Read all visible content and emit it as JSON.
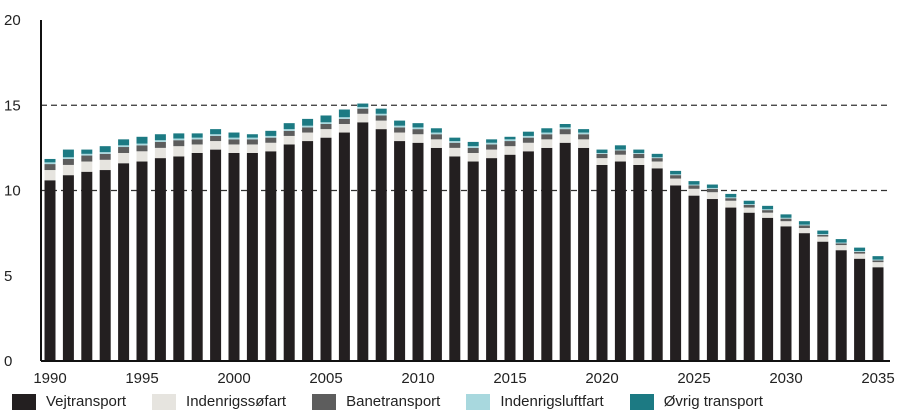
{
  "chart_data": {
    "type": "bar",
    "stacked": true,
    "title": "",
    "xlabel": "",
    "ylabel": "",
    "ylim": [
      0,
      20
    ],
    "yticks": [
      "0",
      "5",
      "10",
      "15",
      "20"
    ],
    "xticks": [
      "1990",
      "1995",
      "2000",
      "2005",
      "2010",
      "2015",
      "2020",
      "2025",
      "2030",
      "2035"
    ],
    "grid": "dashed horizontal lines at 10 and 15",
    "legend_position": "bottom",
    "categories": [
      1990,
      1991,
      1992,
      1993,
      1994,
      1995,
      1996,
      1997,
      1998,
      1999,
      2000,
      2001,
      2002,
      2003,
      2004,
      2005,
      2006,
      2007,
      2008,
      2009,
      2010,
      2011,
      2012,
      2013,
      2014,
      2015,
      2016,
      2017,
      2018,
      2019,
      2020,
      2021,
      2022,
      2023,
      2024,
      2025,
      2026,
      2027,
      2028,
      2029,
      2030,
      2031,
      2032,
      2033,
      2034,
      2035
    ],
    "series": [
      {
        "name": "Vejtransport",
        "color": "#231f20",
        "values": [
          10.6,
          10.9,
          11.1,
          11.2,
          11.6,
          11.7,
          11.9,
          12.0,
          12.2,
          12.4,
          12.2,
          12.2,
          12.3,
          12.7,
          12.9,
          13.1,
          13.4,
          14.0,
          13.6,
          12.9,
          12.8,
          12.5,
          12.0,
          11.7,
          11.9,
          12.1,
          12.3,
          12.5,
          12.8,
          12.5,
          11.5,
          11.7,
          11.5,
          11.3,
          10.3,
          9.7,
          9.5,
          9.0,
          8.7,
          8.4,
          7.9,
          7.5,
          7.0,
          6.5,
          6.0,
          5.5
        ]
      },
      {
        "name": "Indenrigssøfart",
        "color": "#e6e4df",
        "values": [
          0.6,
          0.6,
          0.6,
          0.6,
          0.6,
          0.6,
          0.6,
          0.6,
          0.5,
          0.5,
          0.5,
          0.5,
          0.5,
          0.5,
          0.5,
          0.5,
          0.5,
          0.5,
          0.5,
          0.5,
          0.5,
          0.5,
          0.5,
          0.5,
          0.5,
          0.5,
          0.5,
          0.5,
          0.5,
          0.5,
          0.4,
          0.4,
          0.4,
          0.4,
          0.4,
          0.4,
          0.4,
          0.4,
          0.3,
          0.3,
          0.3,
          0.3,
          0.3,
          0.3,
          0.3,
          0.3
        ]
      },
      {
        "name": "Banetransport",
        "color": "#5d5d5d",
        "values": [
          0.35,
          0.35,
          0.35,
          0.35,
          0.35,
          0.35,
          0.35,
          0.35,
          0.3,
          0.3,
          0.3,
          0.3,
          0.3,
          0.3,
          0.3,
          0.3,
          0.3,
          0.3,
          0.3,
          0.3,
          0.3,
          0.3,
          0.3,
          0.3,
          0.3,
          0.3,
          0.3,
          0.3,
          0.3,
          0.3,
          0.25,
          0.25,
          0.25,
          0.2,
          0.2,
          0.2,
          0.2,
          0.15,
          0.15,
          0.15,
          0.15,
          0.15,
          0.1,
          0.1,
          0.1,
          0.1
        ]
      },
      {
        "name": "Indenrigsluftfart",
        "color": "#a8d8de",
        "values": [
          0.1,
          0.1,
          0.1,
          0.1,
          0.1,
          0.1,
          0.1,
          0.1,
          0.1,
          0.1,
          0.1,
          0.1,
          0.1,
          0.1,
          0.1,
          0.1,
          0.1,
          0.1,
          0.1,
          0.1,
          0.1,
          0.1,
          0.1,
          0.1,
          0.1,
          0.1,
          0.1,
          0.1,
          0.1,
          0.1,
          0.05,
          0.05,
          0.05,
          0.05,
          0.05,
          0.05,
          0.05,
          0.05,
          0.05,
          0.05,
          0.05,
          0.05,
          0.05,
          0.05,
          0.05,
          0.05
        ]
      },
      {
        "name": "Øvrig transport",
        "color": "#1c7a83",
        "values": [
          0.2,
          0.45,
          0.25,
          0.35,
          0.35,
          0.4,
          0.35,
          0.3,
          0.25,
          0.3,
          0.3,
          0.2,
          0.3,
          0.35,
          0.4,
          0.4,
          0.45,
          0.2,
          0.3,
          0.3,
          0.25,
          0.25,
          0.2,
          0.25,
          0.2,
          0.15,
          0.25,
          0.25,
          0.2,
          0.2,
          0.2,
          0.25,
          0.2,
          0.2,
          0.2,
          0.2,
          0.2,
          0.2,
          0.2,
          0.2,
          0.2,
          0.2,
          0.2,
          0.2,
          0.2,
          0.2
        ]
      }
    ]
  }
}
